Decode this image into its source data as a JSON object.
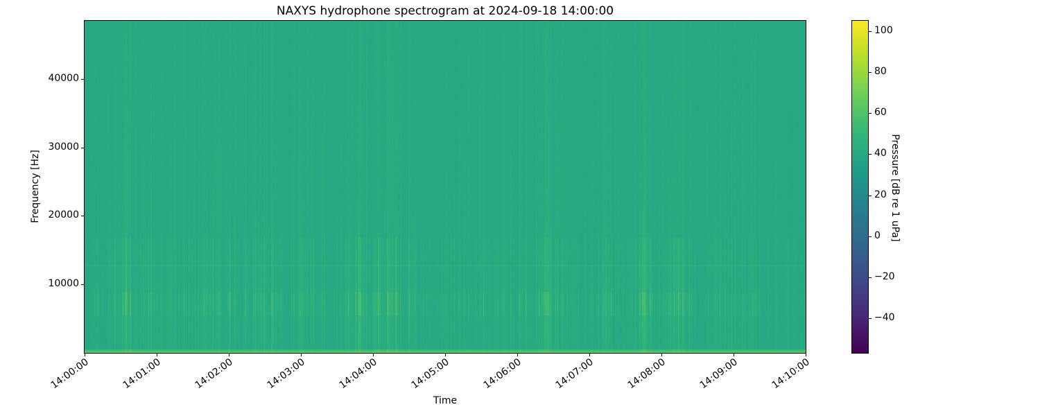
{
  "chart_data": {
    "type": "heatmap",
    "title": "NAXYS hydrophone spectrogram at 2024-09-18 14:00:00",
    "xlabel": "Time",
    "ylabel": "Frequency [Hz]",
    "x_tick_labels": [
      "14:00:00",
      "14:01:00",
      "14:02:00",
      "14:03:00",
      "14:04:00",
      "14:05:00",
      "14:06:00",
      "14:07:00",
      "14:08:00",
      "14:09:00",
      "14:10:00"
    ],
    "x_range_minutes": [
      0,
      10
    ],
    "y_tick_values": [
      10000,
      20000,
      30000,
      40000
    ],
    "y_tick_labels": [
      "10000",
      "20000",
      "30000",
      "40000"
    ],
    "y_range_hz": [
      0,
      48500
    ],
    "grid": false,
    "legend": "colorbar-right",
    "colorbar": {
      "label": "Pressure [dB re 1 uPa]",
      "tick_values": [
        100,
        80,
        60,
        40,
        20,
        0,
        -20,
        -40
      ],
      "tick_labels": [
        "100",
        "80",
        "60",
        "40",
        "20",
        "0",
        "−20",
        "−40"
      ],
      "vmin": -57,
      "vmax": 105.5,
      "colormap": "viridis",
      "colormap_stops": [
        "#440154",
        "#482878",
        "#3e4a89",
        "#31688e",
        "#26828e",
        "#1f9e89",
        "#35b779",
        "#6ece58",
        "#b5de2b",
        "#fde725"
      ]
    },
    "content": {
      "description": "Near-uniform ambient level ~40 dB across 0-48.5 kHz with intermittent narrow broadband vertical transients (strongest between 5.5 and 9 kHz, reaching ~66 dB), a faint tonal line near 12.8 kHz, and an elevated low-frequency band below ~600 Hz that is brightest (~64 dB) at the bottom edge.",
      "background_db": 40,
      "noise_db": 1.3,
      "transient_band_hz": [
        5500,
        9000
      ],
      "transient_peak_db": 66,
      "tonal_line_hz": 12800,
      "tonal_boost_db": 4,
      "low_band_below_hz": 600,
      "low_band_boost_db": 12,
      "bottom_edge_boost_db": 9,
      "seed": 1337
    }
  }
}
